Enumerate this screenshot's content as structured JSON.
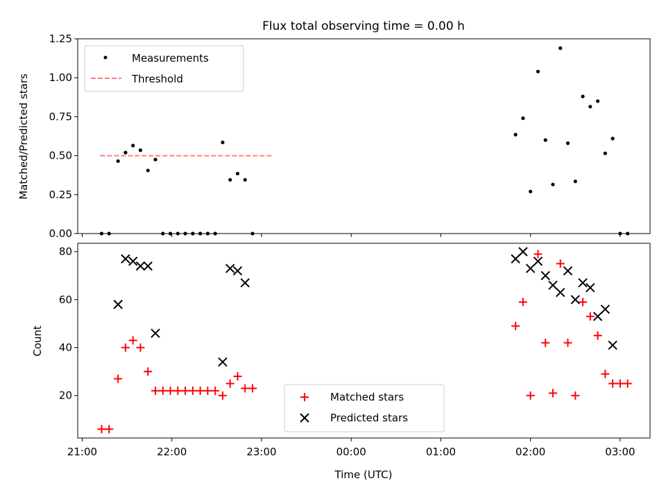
{
  "title": "Flux total observing time = 0.00 h",
  "chart_data": [
    {
      "type": "scatter",
      "ylabel": "Matched/Predicted stars",
      "ylim": [
        0,
        1.25
      ],
      "yticks": [
        0,
        0.25,
        0.5,
        0.75,
        1.0,
        1.25
      ],
      "ytick_labels": [
        "0.00",
        "0.25",
        "0.50",
        "0.75",
        "1.00",
        "1.25"
      ],
      "legend_position": "upper-left",
      "legend": [
        {
          "label": "Measurements",
          "marker": "dot",
          "color": "#000000"
        },
        {
          "label": "Threshold",
          "marker": "dashed-line",
          "color": "#ff7f7f"
        }
      ],
      "threshold": {
        "y": 0.5,
        "x_start": "21:12",
        "x_end": "23:07"
      },
      "series": [
        {
          "name": "Measurements",
          "color": "#000000",
          "points": [
            [
              "21:13",
              0.0
            ],
            [
              "21:18",
              0.0
            ],
            [
              "21:24",
              0.465
            ],
            [
              "21:29",
              0.52
            ],
            [
              "21:34",
              0.565
            ],
            [
              "21:39",
              0.535
            ],
            [
              "21:44",
              0.405
            ],
            [
              "21:49",
              0.475
            ],
            [
              "21:54",
              0.0
            ],
            [
              "21:59",
              0.0
            ],
            [
              "22:04",
              0.0
            ],
            [
              "22:09",
              0.0
            ],
            [
              "22:14",
              0.0
            ],
            [
              "22:19",
              0.0
            ],
            [
              "22:24",
              0.0
            ],
            [
              "22:29",
              0.0
            ],
            [
              "22:34",
              0.585
            ],
            [
              "22:39",
              0.345
            ],
            [
              "22:44",
              0.385
            ],
            [
              "22:49",
              0.345
            ],
            [
              "22:54",
              0.0
            ],
            [
              "01:50",
              0.635
            ],
            [
              "01:55",
              0.74
            ],
            [
              "02:00",
              0.27
            ],
            [
              "02:05",
              1.04
            ],
            [
              "02:10",
              0.6
            ],
            [
              "02:15",
              0.315
            ],
            [
              "02:20",
              1.19
            ],
            [
              "02:25",
              0.58
            ],
            [
              "02:30",
              0.335
            ],
            [
              "02:35",
              0.88
            ],
            [
              "02:40",
              0.815
            ],
            [
              "02:45",
              0.85
            ],
            [
              "02:50",
              0.515
            ],
            [
              "02:55",
              0.61
            ],
            [
              "03:00",
              0.0
            ],
            [
              "03:05",
              0.0
            ]
          ]
        }
      ]
    },
    {
      "type": "scatter",
      "xlabel": "Time (UTC)",
      "ylabel": "Count",
      "ylim": [
        2.3,
        83.5
      ],
      "yticks": [
        20,
        40,
        60,
        80
      ],
      "ytick_labels": [
        "20",
        "40",
        "60",
        "80"
      ],
      "xticks": [
        "21:00",
        "22:00",
        "23:00",
        "00:00",
        "01:00",
        "02:00",
        "03:00"
      ],
      "xlim": [
        "20:57",
        "03:20"
      ],
      "legend_position": "lower-center",
      "legend": [
        {
          "label": "Matched stars",
          "marker": "plus",
          "color": "#ff0000"
        },
        {
          "label": "Predicted stars",
          "marker": "x",
          "color": "#000000"
        }
      ],
      "series": [
        {
          "name": "Matched stars",
          "marker": "plus",
          "color": "#ff0000",
          "points": [
            [
              "21:13",
              6
            ],
            [
              "21:18",
              6
            ],
            [
              "21:24",
              27
            ],
            [
              "21:29",
              40
            ],
            [
              "21:34",
              43
            ],
            [
              "21:39",
              40
            ],
            [
              "21:44",
              30
            ],
            [
              "21:49",
              22
            ],
            [
              "21:54",
              22
            ],
            [
              "21:59",
              22
            ],
            [
              "22:04",
              22
            ],
            [
              "22:09",
              22
            ],
            [
              "22:14",
              22
            ],
            [
              "22:19",
              22
            ],
            [
              "22:24",
              22
            ],
            [
              "22:29",
              22
            ],
            [
              "22:34",
              20
            ],
            [
              "22:39",
              25
            ],
            [
              "22:44",
              28
            ],
            [
              "22:49",
              23
            ],
            [
              "22:54",
              23
            ],
            [
              "01:50",
              49
            ],
            [
              "01:55",
              59
            ],
            [
              "02:00",
              20
            ],
            [
              "02:05",
              79
            ],
            [
              "02:10",
              42
            ],
            [
              "02:15",
              21
            ],
            [
              "02:20",
              75
            ],
            [
              "02:25",
              42
            ],
            [
              "02:30",
              20
            ],
            [
              "02:35",
              59
            ],
            [
              "02:40",
              53
            ],
            [
              "02:45",
              45
            ],
            [
              "02:50",
              29
            ],
            [
              "02:55",
              25
            ],
            [
              "03:00",
              25
            ],
            [
              "03:05",
              25
            ]
          ]
        },
        {
          "name": "Predicted stars",
          "marker": "x",
          "color": "#000000",
          "points": [
            [
              "21:24",
              58
            ],
            [
              "21:29",
              77
            ],
            [
              "21:34",
              76
            ],
            [
              "21:39",
              74
            ],
            [
              "21:44",
              74
            ],
            [
              "21:49",
              46
            ],
            [
              "22:34",
              34
            ],
            [
              "22:39",
              73
            ],
            [
              "22:44",
              72
            ],
            [
              "22:49",
              67
            ],
            [
              "01:50",
              77
            ],
            [
              "01:55",
              80
            ],
            [
              "02:00",
              73
            ],
            [
              "02:05",
              76
            ],
            [
              "02:10",
              70
            ],
            [
              "02:15",
              66
            ],
            [
              "02:20",
              63
            ],
            [
              "02:25",
              72
            ],
            [
              "02:30",
              60
            ],
            [
              "02:35",
              67
            ],
            [
              "02:40",
              65
            ],
            [
              "02:45",
              53
            ],
            [
              "02:50",
              56
            ],
            [
              "02:55",
              41
            ]
          ]
        }
      ]
    }
  ]
}
